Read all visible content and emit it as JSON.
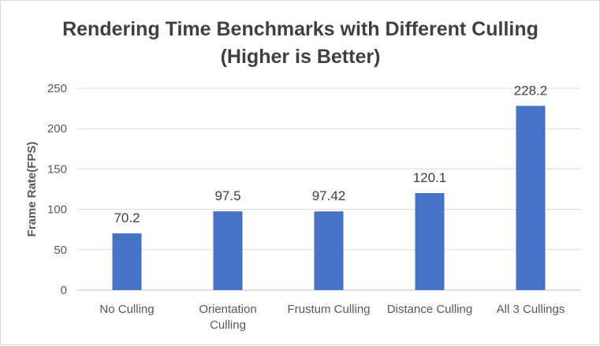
{
  "chart_data": {
    "type": "bar",
    "title_lines": [
      "Rendering Time Benchmarks with Different Culling",
      "(Higher is Better)"
    ],
    "xlabel": "",
    "ylabel": "Frame Rate(FPS)",
    "categories": [
      [
        "No Culling"
      ],
      [
        "Orientation",
        "Culling"
      ],
      [
        "Frustum Culling"
      ],
      [
        "Distance Culling"
      ],
      [
        "All 3 Cullings"
      ]
    ],
    "values": [
      70.2,
      97.5,
      97.42,
      120.1,
      228.2
    ],
    "data_labels": [
      "70.2",
      "97.5",
      "97.42",
      "120.1",
      "228.2"
    ],
    "ylim": [
      0,
      250
    ],
    "yticks": [
      0,
      50,
      100,
      150,
      200,
      250
    ],
    "grid": true,
    "legend": "none",
    "bar_color": "#4472C4",
    "grid_color": "#d9d9d9"
  }
}
